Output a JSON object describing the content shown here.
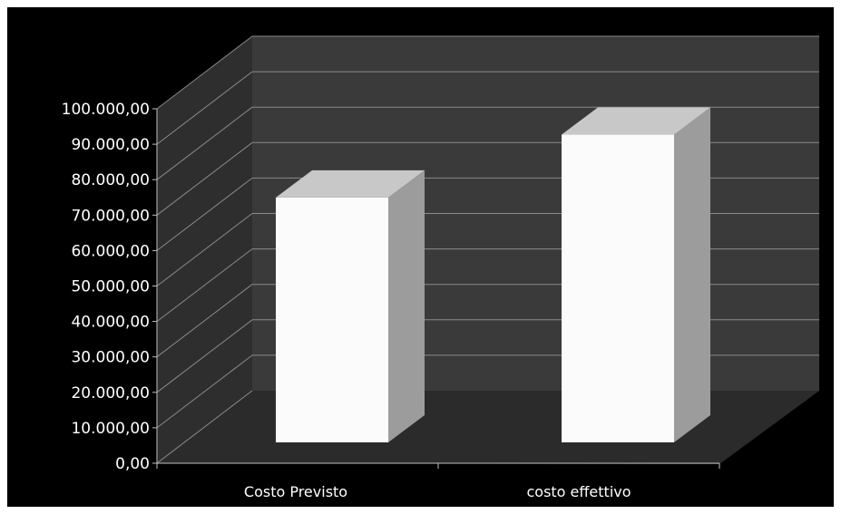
{
  "chart_data": {
    "type": "bar",
    "categories": [
      "Costo Previsto",
      "costo effettivo"
    ],
    "values": [
      74000,
      93000
    ],
    "ylim": [
      0,
      100000
    ],
    "yticks": [
      "0,00",
      "10.000,00",
      "20.000,00",
      "30.000,00",
      "40.000,00",
      "50.000,00",
      "60.000,00",
      "70.000,00",
      "80.000,00",
      "90.000,00",
      "100.000,00"
    ],
    "grid": true,
    "legend": "none",
    "colors": {
      "background": "#000000",
      "wall": "#3a3a3a",
      "side_wall": "#2e2e2e",
      "floor": "#2b2b2b",
      "gridline": "#8a8a8a",
      "bar_front": "#fbfbfb",
      "bar_side": "#9c9c9c",
      "bar_top": "#c8c8c8"
    }
  }
}
